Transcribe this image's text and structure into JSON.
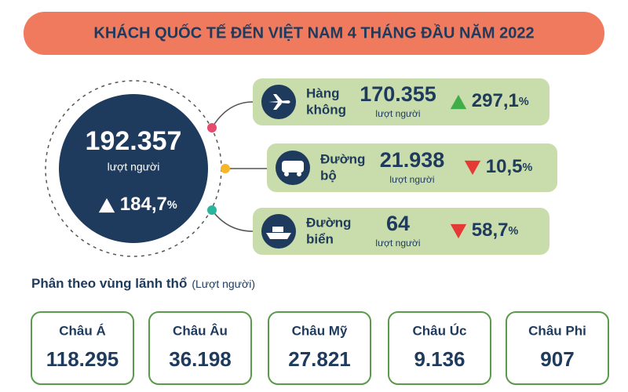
{
  "title": "KHÁCH QUỐC TẾ ĐẾN VIỆT NAM 4 THÁNG ĐẦU NĂM 2022",
  "total": {
    "value": "192.357",
    "unit_label": "lượt người",
    "change": {
      "direction": "up",
      "value": "184,7",
      "unit": "%"
    }
  },
  "modes": [
    {
      "name_lines": [
        "Hàng",
        "không"
      ],
      "value": "170.355",
      "unit_label": "lượt người",
      "change": {
        "direction": "up",
        "value": "297,1",
        "unit": "%"
      }
    },
    {
      "name_lines": [
        "Đường",
        "bộ"
      ],
      "value": "21.938",
      "unit_label": "lượt người",
      "change": {
        "direction": "down",
        "value": "10,5",
        "unit": "%"
      }
    },
    {
      "name_lines": [
        "Đường",
        "biển"
      ],
      "value": "64",
      "unit_label": "lượt người",
      "change": {
        "direction": "down",
        "value": "58,7",
        "unit": "%"
      }
    }
  ],
  "regions_heading": "Phân theo vùng lãnh thổ",
  "regions_note": "(Lượt người)",
  "regions": [
    {
      "name": "Châu Á",
      "value": "118.295"
    },
    {
      "name": "Châu Âu",
      "value": "36.198"
    },
    {
      "name": "Châu Mỹ",
      "value": "27.821"
    },
    {
      "name": "Châu Úc",
      "value": "9.136"
    },
    {
      "name": "Châu Phi",
      "value": "907"
    }
  ]
}
